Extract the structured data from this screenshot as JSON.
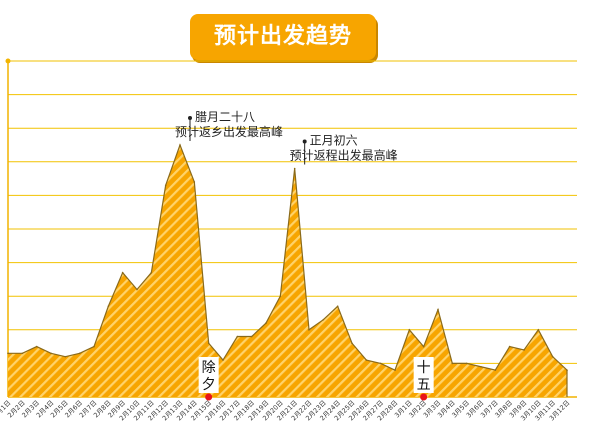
{
  "header": {
    "title": "预计出发趋势"
  },
  "chart_data": {
    "type": "area",
    "title": "预计出发趋势",
    "xlabel": "",
    "ylabel": "",
    "ylim": [
      0,
      10
    ],
    "grid": true,
    "categories": [
      "2月1日",
      "2月2日",
      "2月3日",
      "2月4日",
      "2月5日",
      "2月6日",
      "2月7日",
      "2月8日",
      "2月9日",
      "2月10日",
      "2月11日",
      "2月12日",
      "2月13日",
      "2月14日",
      "2月15日",
      "2月16日",
      "2月17日",
      "2月18日",
      "2月19日",
      "2月20日",
      "2月21日",
      "2月22日",
      "2月23日",
      "2月24日",
      "2月25日",
      "2月26日",
      "2月27日",
      "2月28日",
      "3月1日",
      "3月2日",
      "3月3日",
      "3月4日",
      "3月5日",
      "3月6日",
      "3月7日",
      "3月8日",
      "3月9日",
      "3月10日",
      "3月11日",
      "3月12日"
    ],
    "values": [
      1.3,
      1.3,
      1.5,
      1.3,
      1.2,
      1.3,
      1.5,
      2.7,
      3.7,
      3.2,
      3.7,
      6.3,
      7.5,
      6.4,
      1.6,
      1.1,
      1.8,
      1.8,
      2.2,
      3.0,
      6.8,
      2.0,
      2.3,
      2.7,
      1.6,
      1.1,
      1.0,
      0.8,
      2.0,
      1.5,
      2.6,
      1.0,
      1.0,
      0.9,
      0.8,
      1.5,
      1.4,
      2.0,
      1.2,
      0.8
    ],
    "series": [
      {
        "name": "预计出发",
        "color": "#f7a500"
      }
    ],
    "annotations": [
      {
        "category": "2月13日",
        "lines": [
          "腊月二十八",
          "预计返乡出发最高峰"
        ]
      },
      {
        "category": "2月21日",
        "lines": [
          "正月初六",
          "预计返程出发最高峰"
        ]
      }
    ],
    "markers": [
      {
        "category": "2月15日",
        "text": "除夕",
        "color": "#e8151b"
      },
      {
        "category": "3月2日",
        "text": "十五",
        "color": "#e8151b"
      }
    ]
  }
}
